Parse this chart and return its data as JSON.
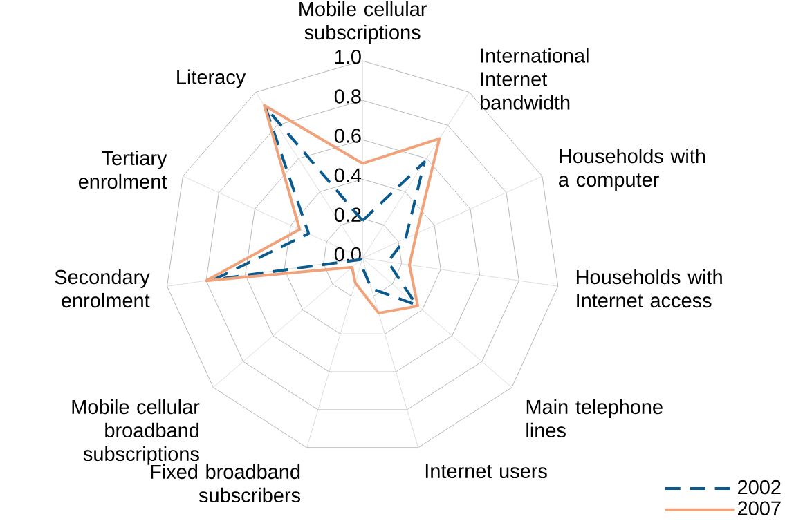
{
  "chart_data": {
    "type": "radar",
    "categories": [
      "Mobile cellular subscriptions",
      "International Internet bandwidth",
      "Households with a computer",
      "Households with Internet access",
      "Main telephone lines",
      "Internet users",
      "Fixed broadband subscribers",
      "Mobile cellular broadband subscriptions",
      "Secondary enrolment",
      "Tertiary enrolment",
      "Literacy"
    ],
    "series": [
      {
        "name": "2002",
        "color": "#0b5a8e",
        "line_style": "dashed",
        "values": [
          0.19,
          0.58,
          0.24,
          0.13,
          0.36,
          0.16,
          0.03,
          0.01,
          0.76,
          0.3,
          0.91
        ]
      },
      {
        "name": "2007",
        "color": "#f0a27a",
        "line_style": "solid",
        "values": [
          0.48,
          0.72,
          0.3,
          0.24,
          0.37,
          0.29,
          0.13,
          0.07,
          0.8,
          0.35,
          0.92
        ]
      }
    ],
    "ylim": [
      0,
      1
    ],
    "yticks": [
      {
        "value": 0,
        "label": "0.0"
      },
      0.2,
      0.4,
      0.6,
      0.8,
      {
        "value": 1,
        "label": "1.0"
      }
    ],
    "grid": true,
    "legend": "bottom right",
    "marker": "none"
  }
}
